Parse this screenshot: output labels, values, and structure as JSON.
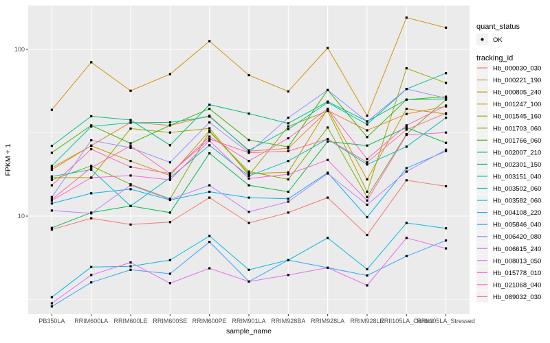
{
  "chart_data": {
    "type": "line",
    "title": "",
    "xlabel": "sample_name",
    "ylabel": "FPKM + 1",
    "y_scale": "log10",
    "y_ticks": [
      10,
      100
    ],
    "y_minor_ticks": [
      3.1623,
      31.623
    ],
    "ylim": [
      2.6,
      183
    ],
    "grid": "on",
    "legend_position": "right",
    "panel_bg": "#EBEBEB",
    "grid_color": "#FFFFFF",
    "point_color": "#000000",
    "tick_text_color": "#4D4D4D",
    "legend_key_bg": "#F2F2F2",
    "categories": [
      "PB350LA",
      "RRIM600LA",
      "RRIM600LE",
      "RRIM600SE",
      "RRIM600PE",
      "RRIM901LA",
      "RRIM928BA",
      "RRIM928LA",
      "RRIM928LE",
      "RRII105LA_Control",
      "RRII105LA_Stressed"
    ],
    "legend": {
      "quant_status_title": "quant_status",
      "quant_status_items": [
        "OK"
      ],
      "tracking_id_title": "tracking_id"
    },
    "series": [
      {
        "name": "Hb_000030_030",
        "color": "#F8766D",
        "values": [
          8.3,
          9.7,
          8.9,
          9.2,
          12.9,
          9.1,
          10.5,
          12.9,
          7.7,
          16.4,
          15.1
        ]
      },
      {
        "name": "Hb_000221_190",
        "color": "#EA8331",
        "values": [
          19.0,
          26.5,
          36.5,
          35.0,
          40.0,
          24.5,
          25.5,
          43.0,
          32.7,
          41.0,
          45.5
        ]
      },
      {
        "name": "Hb_000805_240",
        "color": "#D89000",
        "values": [
          43.4,
          83.7,
          56.5,
          71.0,
          112.0,
          70.0,
          56.0,
          102.0,
          40.0,
          155.0,
          135.0
        ]
      },
      {
        "name": "Hb_001247_100",
        "color": "#C09B00",
        "values": [
          19.5,
          26.4,
          21.4,
          17.5,
          32.5,
          18.0,
          18.3,
          44.0,
          16.6,
          44.0,
          41.0
        ]
      },
      {
        "name": "Hb_001545_160",
        "color": "#A3A500",
        "values": [
          17.0,
          17.0,
          33.5,
          31.7,
          33.6,
          17.6,
          34.5,
          42.7,
          14.0,
          77.0,
          63.0
        ]
      },
      {
        "name": "Hb_001703_060",
        "color": "#7CAE00",
        "values": [
          16.5,
          20.0,
          15.5,
          12.7,
          32.0,
          18.5,
          16.6,
          34.0,
          13.0,
          31.0,
          50.0
        ]
      },
      {
        "name": "Hb_001766_060",
        "color": "#39B600",
        "values": [
          24.0,
          35.0,
          27.3,
          35.0,
          44.0,
          28.6,
          26.0,
          57.0,
          29.8,
          50.0,
          52.0
        ]
      },
      {
        "name": "Hb_002007_210",
        "color": "#00BB4E",
        "values": [
          8.5,
          10.5,
          11.5,
          10.5,
          23.8,
          15.3,
          14.0,
          28.0,
          26.5,
          34.0,
          27.5
        ]
      },
      {
        "name": "Hb_002301_150",
        "color": "#00BF7D",
        "values": [
          26.4,
          39.7,
          37.7,
          26.6,
          46.6,
          41.2,
          36.0,
          48.6,
          37.0,
          50.0,
          50.5
        ]
      },
      {
        "name": "Hb_003151_040",
        "color": "#00C1A3",
        "values": [
          20.0,
          34.5,
          36.3,
          36.5,
          39.5,
          24.8,
          33.2,
          48.0,
          35.5,
          57.9,
          72.0
        ]
      },
      {
        "name": "Hb_003502_060",
        "color": "#00BFC4",
        "values": [
          17.3,
          19.0,
          11.5,
          17.0,
          26.6,
          17.4,
          21.4,
          29.0,
          20.4,
          26.1,
          38.9
        ]
      },
      {
        "name": "Hb_003582_060",
        "color": "#00BAE0",
        "values": [
          3.26,
          4.95,
          5.0,
          5.45,
          7.6,
          4.76,
          5.45,
          7.4,
          4.8,
          9.1,
          8.45
        ]
      },
      {
        "name": "Hb_004108_220",
        "color": "#00B0F6",
        "values": [
          11.9,
          13.7,
          14.5,
          12.5,
          14.0,
          12.9,
          12.7,
          18.2,
          9.85,
          19.4,
          24.5
        ]
      },
      {
        "name": "Hb_005846_040",
        "color": "#35A2FF",
        "values": [
          2.87,
          4.0,
          4.76,
          4.51,
          7.0,
          4.05,
          5.45,
          4.9,
          4.4,
          5.75,
          7.14
        ]
      },
      {
        "name": "Hb_006420_080",
        "color": "#9590FF",
        "values": [
          13.0,
          28.5,
          25.7,
          21.0,
          36.5,
          24.0,
          38.9,
          57.0,
          36.9,
          57.9,
          51.0
        ]
      },
      {
        "name": "Hb_006615_240",
        "color": "#C77CFF",
        "values": [
          10.8,
          10.4,
          15.3,
          12.6,
          15.3,
          10.6,
          12.2,
          18.0,
          11.7,
          18.5,
          25.0
        ]
      },
      {
        "name": "Hb_008013_050",
        "color": "#E76BF3",
        "values": [
          3.0,
          4.43,
          5.27,
          3.96,
          4.86,
          4.05,
          4.43,
          4.9,
          3.84,
          7.4,
          6.4
        ]
      },
      {
        "name": "Hb_015778_010",
        "color": "#FA62DB",
        "values": [
          12.4,
          17.0,
          17.5,
          16.5,
          28.3,
          16.8,
          17.8,
          21.7,
          12.4,
          30.7,
          31.7
        ]
      },
      {
        "name": "Hb_021068_040",
        "color": "#FF62BC",
        "values": [
          15.3,
          25.2,
          19.7,
          18.0,
          30.0,
          21.4,
          29.3,
          44.0,
          22.0,
          35.0,
          46.0
        ]
      },
      {
        "name": "Hb_089032_030",
        "color": "#FF6A98",
        "values": [
          12.6,
          19.5,
          26.4,
          18.0,
          29.0,
          24.0,
          24.5,
          29.0,
          21.0,
          33.0,
          41.4
        ]
      }
    ]
  }
}
